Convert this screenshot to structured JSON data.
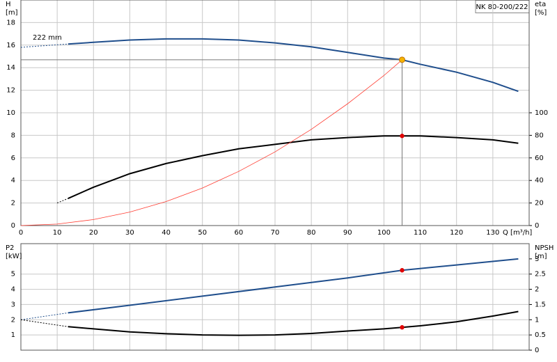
{
  "chart_data": [
    {
      "type": "line",
      "title": "NK 80-200/222",
      "annotation": "222 mm",
      "y_label": [
        "H",
        "[m]"
      ],
      "y2_label": [
        "eta",
        "[%]"
      ],
      "x_label": "Q [m³/h]",
      "xlim": [
        0,
        140
      ],
      "xticks": [
        0,
        10,
        20,
        30,
        40,
        50,
        60,
        70,
        80,
        90,
        100,
        110,
        120,
        130
      ],
      "ylim": [
        0,
        20
      ],
      "yticks": [
        0,
        2,
        4,
        6,
        8,
        10,
        12,
        14,
        16,
        18
      ],
      "y2lim": [
        0,
        200
      ],
      "y2ticks": [
        0,
        20,
        40,
        60,
        80,
        100
      ],
      "grid": true,
      "series": [
        {
          "color": "#1f4e8c",
          "style": "dotted",
          "x": [
            0,
            13
          ],
          "values": [
            15.8,
            16.1
          ]
        },
        {
          "color": "#1f4e8c",
          "style": "solid",
          "x": [
            13,
            20,
            30,
            40,
            50,
            60,
            70,
            80,
            90,
            100,
            105,
            110,
            120,
            130,
            137
          ],
          "values": [
            16.1,
            16.25,
            16.45,
            16.55,
            16.55,
            16.45,
            16.2,
            15.85,
            15.35,
            14.85,
            14.7,
            14.3,
            13.6,
            12.7,
            11.9
          ]
        },
        {
          "color": "#000000",
          "style": "dotted",
          "axis": "y2",
          "x": [
            10,
            13
          ],
          "values": [
            20,
            24
          ]
        },
        {
          "color": "#000000",
          "style": "solid",
          "axis": "y2",
          "x": [
            13,
            20,
            30,
            40,
            50,
            60,
            70,
            80,
            90,
            100,
            105,
            110,
            120,
            130,
            137
          ],
          "values": [
            24,
            34,
            46,
            55,
            62,
            68,
            72,
            76,
            78,
            79.5,
            79.5,
            79.5,
            78,
            76,
            73
          ]
        },
        {
          "color": "#ff3b30",
          "style": "thin",
          "x": [
            0,
            10,
            20,
            30,
            40,
            50,
            60,
            70,
            80,
            90,
            100,
            105
          ],
          "values": [
            0,
            0.13,
            0.53,
            1.2,
            2.13,
            3.33,
            4.8,
            6.53,
            8.53,
            10.8,
            13.3,
            14.7
          ]
        },
        {
          "color": "#f5b400",
          "style": "points",
          "guide": true,
          "x": [
            105
          ],
          "values": [
            14.7
          ]
        },
        {
          "color": "#e00000",
          "style": "points",
          "axis": "y2",
          "x": [
            105
          ],
          "values": [
            79.5
          ]
        }
      ]
    },
    {
      "type": "line",
      "y_label": [
        "P2",
        "[kW]"
      ],
      "y2_label": [
        "NPSH",
        "[m]"
      ],
      "xlim": [
        0,
        140
      ],
      "ylim": [
        0,
        7
      ],
      "yticks": [
        1,
        2,
        3,
        4,
        5
      ],
      "y2lim": [
        0,
        3.5
      ],
      "y2ticks": [
        0,
        0.5,
        1,
        1.5,
        2,
        2.5,
        3
      ],
      "grid": true,
      "series": [
        {
          "color": "#1f4e8c",
          "style": "dotted",
          "x": [
            0,
            13
          ],
          "values": [
            2.0,
            2.45
          ]
        },
        {
          "color": "#1f4e8c",
          "style": "solid",
          "x": [
            13,
            30,
            50,
            70,
            90,
            105,
            120,
            137
          ],
          "values": [
            2.45,
            2.95,
            3.55,
            4.15,
            4.75,
            5.25,
            5.6,
            6.0
          ]
        },
        {
          "color": "#000000",
          "style": "dotted",
          "axis": "y2",
          "x": [
            0,
            13
          ],
          "values": [
            1.0,
            0.77
          ]
        },
        {
          "color": "#000000",
          "style": "solid",
          "axis": "y2",
          "x": [
            13,
            20,
            30,
            40,
            50,
            60,
            70,
            80,
            90,
            100,
            105,
            110,
            120,
            130,
            137
          ],
          "values": [
            0.77,
            0.7,
            0.6,
            0.54,
            0.5,
            0.49,
            0.5,
            0.55,
            0.63,
            0.7,
            0.75,
            0.8,
            0.93,
            1.12,
            1.27
          ]
        },
        {
          "color": "#e00000",
          "style": "points",
          "x": [
            105
          ],
          "values": [
            5.25
          ]
        },
        {
          "color": "#e00000",
          "style": "points",
          "axis": "y2",
          "x": [
            105
          ],
          "values": [
            0.75
          ]
        }
      ]
    }
  ]
}
